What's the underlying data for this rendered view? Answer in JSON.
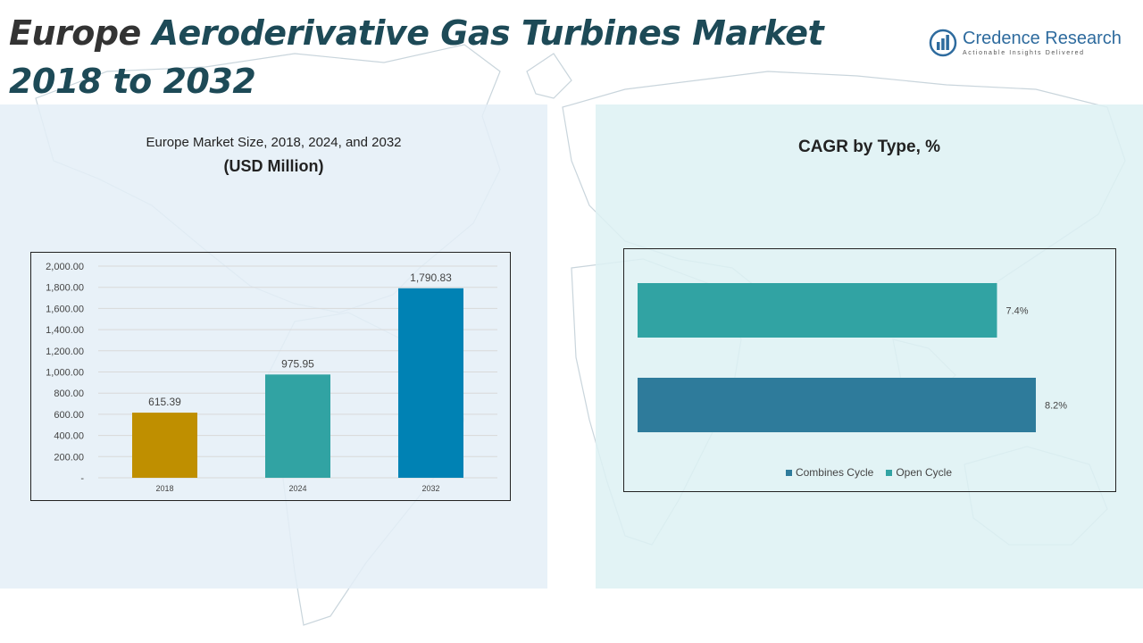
{
  "page": {
    "title_part1": "Europe ",
    "title_part2": "Aeroderivative Gas Turbines Market 2018 to 2032"
  },
  "brand": {
    "name": "Credence Research",
    "tagline": "Actionable Insights Delivered",
    "icon": "bar-chart-globe-icon"
  },
  "left_panel": {
    "subtitle": "Europe Market Size, 2018, 2024, and 2032",
    "unit": "(USD Million)"
  },
  "right_panel": {
    "title": "CAGR by Type, %"
  },
  "chart_data": [
    {
      "type": "bar",
      "title": "Europe Market Size, 2018, 2024, and 2032",
      "ylabel": "(USD Million)",
      "categories": [
        "2018",
        "2024",
        "2032"
      ],
      "values": [
        615.39,
        975.95,
        1790.83
      ],
      "value_labels": [
        "615.39",
        "975.95",
        "1,790.83"
      ],
      "colors": [
        "#bf8f00",
        "#31a3a3",
        "#0082b4"
      ],
      "ylim": [
        0,
        2000
      ],
      "yticks": [
        0,
        200,
        400,
        600,
        800,
        1000,
        1200,
        1400,
        1600,
        1800,
        2000
      ],
      "ytick_labels": [
        "-",
        "200.00",
        "400.00",
        "600.00",
        "800.00",
        "1,000.00",
        "1,200.00",
        "1,400.00",
        "1,600.00",
        "1,800.00",
        "2,000.00"
      ],
      "grid": true
    },
    {
      "type": "bar",
      "orientation": "horizontal",
      "title": "CAGR by Type, %",
      "categories": [
        "Open Cycle",
        "Combines Cycle"
      ],
      "values": [
        7.4,
        8.2
      ],
      "value_labels": [
        "7.4%",
        "8.2%"
      ],
      "colors": [
        "#31a3a3",
        "#2e7b9b"
      ],
      "legend": [
        "Combines Cycle",
        "Open Cycle"
      ],
      "legend_colors": [
        "#2e7b9b",
        "#31a3a3"
      ],
      "legend_position": "bottom",
      "grid": false
    }
  ]
}
